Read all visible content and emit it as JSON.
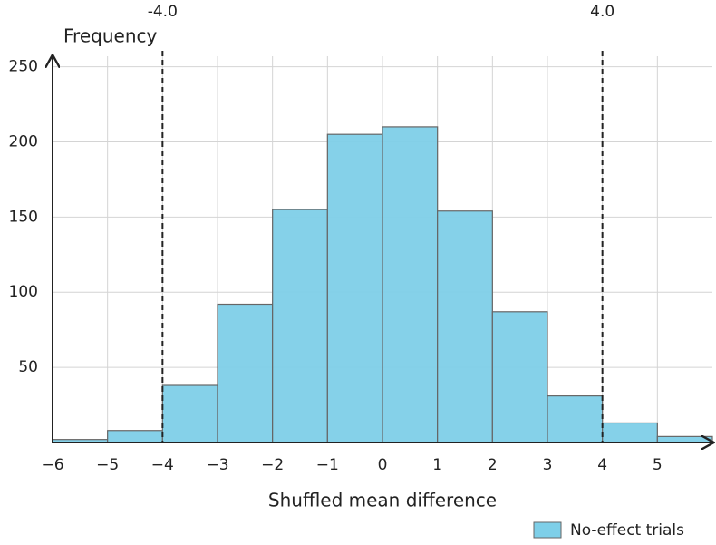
{
  "chart_data": {
    "type": "histogram",
    "x_label": "Shuffled mean difference",
    "y_label": "Frequency",
    "bins": [
      -6,
      -5,
      -4,
      -3,
      -2,
      -1,
      0,
      1,
      2,
      3,
      4,
      5,
      6
    ],
    "series": [
      {
        "name": "No-effect trials",
        "color": "#7ecfe8",
        "values": [
          2,
          8,
          38,
          92,
          155,
          205,
          210,
          154,
          87,
          31,
          13,
          4
        ]
      }
    ],
    "xlim": [
      -6,
      6
    ],
    "ylim": [
      0,
      257
    ],
    "xticks": [
      {
        "value": -6,
        "label": "−6"
      },
      {
        "value": -5,
        "label": "−5"
      },
      {
        "value": -4,
        "label": "−4"
      },
      {
        "value": -3,
        "label": "−3"
      },
      {
        "value": -2,
        "label": "−2"
      },
      {
        "value": -1,
        "label": "−1"
      },
      0,
      1,
      2,
      3,
      4,
      5
    ],
    "yticks": [
      50,
      100,
      150,
      200,
      250
    ],
    "reference_lines": [
      {
        "value": -4,
        "label": "-4.0"
      },
      {
        "value": 4,
        "label": "4.0"
      }
    ],
    "grid": true,
    "legend": "bottom-right"
  }
}
